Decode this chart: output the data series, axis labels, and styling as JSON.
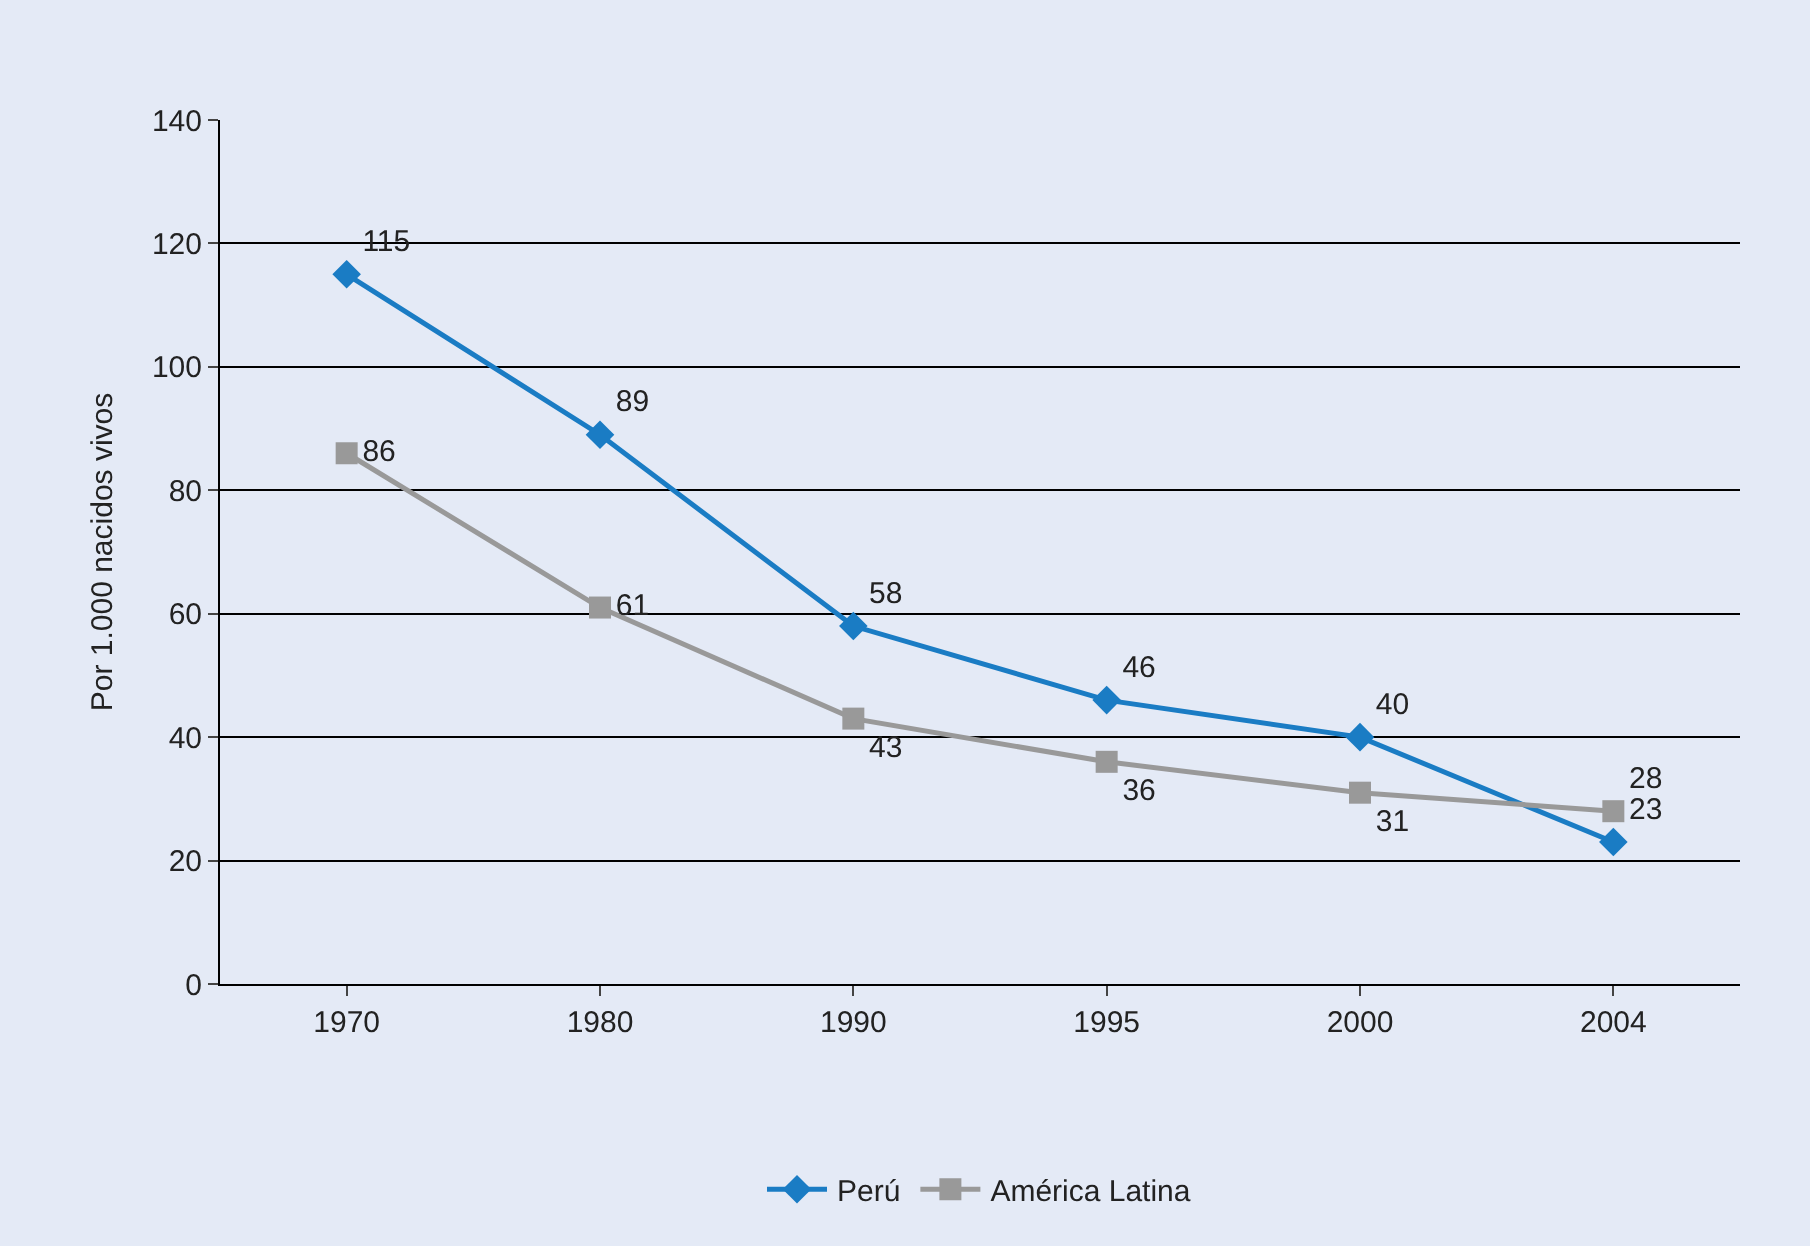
{
  "chart_data": {
    "type": "line",
    "ylabel": "Por 1.000 nacidos vivos",
    "categories": [
      "1970",
      "1980",
      "1990",
      "1995",
      "2000",
      "2004"
    ],
    "series": [
      {
        "name": "Perú",
        "color": "#1a7cc4",
        "values": [
          115,
          89,
          58,
          46,
          40,
          23
        ],
        "marker": "diamond"
      },
      {
        "name": "América Latina",
        "color": "#999999",
        "values": [
          86,
          61,
          43,
          36,
          31,
          28
        ],
        "marker": "square"
      }
    ],
    "ylim": [
      0,
      140
    ],
    "yticks": [
      0,
      20,
      40,
      60,
      80,
      100,
      120,
      140
    ],
    "grid": "y",
    "legend": "bottom",
    "data_labels": true
  }
}
